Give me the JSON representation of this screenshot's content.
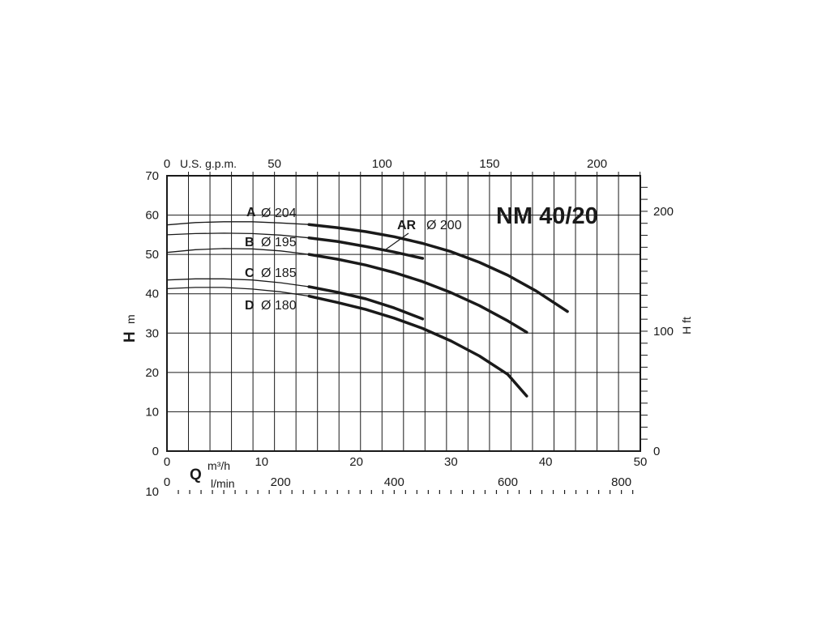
{
  "chart_data": {
    "type": "line",
    "title": "NM 40/20",
    "ylabel_symbol": "H",
    "ylabel_unit": "m",
    "ylabel_right": "H ft",
    "xlabel_symbol": "Q",
    "xlabel_unit_primary": "m³/h",
    "xlabel_unit_secondary": "l/min",
    "top_axis_label": "U.S. g.p.m.",
    "xlim": [
      0,
      50
    ],
    "ylim": [
      0,
      70
    ],
    "x_ticks": [
      "0",
      "10",
      "20",
      "30",
      "40",
      "50"
    ],
    "y_ticks": [
      "0",
      "10",
      "20",
      "30",
      "40",
      "50",
      "60",
      "70"
    ],
    "top_ticks": [
      "0",
      "50",
      "100",
      "150",
      "200"
    ],
    "right_ticks": [
      "0",
      "100",
      "200"
    ],
    "lmin_ticks": [
      "0",
      "200",
      "400",
      "600",
      "800"
    ],
    "bottom_axis_cut_label": "10",
    "grid": true,
    "series": [
      {
        "name": "A",
        "diameter": "Ø 204",
        "x": [
          0,
          3,
          6,
          9,
          12,
          15,
          18,
          21,
          24,
          27,
          30,
          33,
          36,
          39,
          42.3
        ],
        "y": [
          57.5,
          58.1,
          58.3,
          58.3,
          58.0,
          57.6,
          56.8,
          55.8,
          54.5,
          52.8,
          50.7,
          48.0,
          44.7,
          40.7,
          35.5
        ]
      },
      {
        "name": "B",
        "diameter": "Ø 195",
        "x": [
          0,
          3,
          6,
          9,
          12,
          15,
          18,
          21,
          24,
          27,
          30,
          33,
          36,
          38
        ],
        "y": [
          50.5,
          51.2,
          51.5,
          51.4,
          50.9,
          50.0,
          48.8,
          47.3,
          45.4,
          43.1,
          40.3,
          37.0,
          33.1,
          30.2
        ]
      },
      {
        "name": "C",
        "diameter": "Ø 185",
        "x": [
          0,
          3,
          6,
          9,
          12,
          15,
          18,
          21,
          24,
          27,
          30,
          33,
          36,
          38
        ],
        "y": [
          41.3,
          41.6,
          41.6,
          41.2,
          40.5,
          39.4,
          37.8,
          36.0,
          33.8,
          31.2,
          28.0,
          24.2,
          19.5,
          14.0
        ]
      },
      {
        "name": "AR",
        "diameter": "Ø 200",
        "x": [
          0,
          3,
          6,
          9,
          12,
          15,
          18,
          21,
          24,
          27
        ],
        "y": [
          55.0,
          55.3,
          55.4,
          55.3,
          54.9,
          54.2,
          53.3,
          52.0,
          50.6,
          49.0
        ]
      },
      {
        "name": "D",
        "diameter": "Ø 180",
        "x": [
          0,
          3,
          6,
          9,
          12,
          15,
          18,
          21,
          24,
          27
        ],
        "y": [
          43.5,
          43.8,
          43.8,
          43.5,
          42.8,
          41.8,
          40.4,
          38.7,
          36.4,
          33.6
        ]
      }
    ]
  }
}
